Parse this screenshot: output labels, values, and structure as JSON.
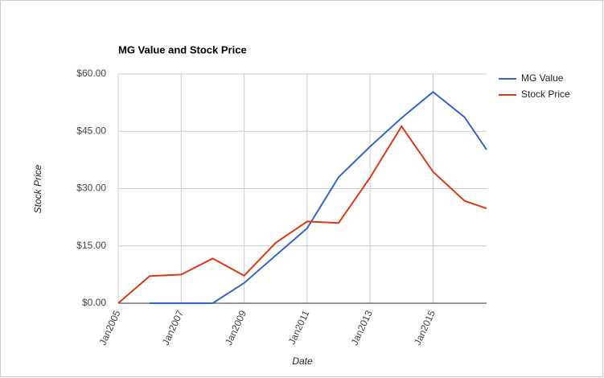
{
  "chart_data": {
    "type": "line",
    "title": "MG Value and Stock Price",
    "x_label": "Date",
    "y_label": "Stock Price",
    "x": [
      2005,
      2006,
      2007,
      2008,
      2009,
      2010,
      2011,
      2012,
      2013,
      2014,
      2015,
      2016,
      2016.7
    ],
    "series": [
      {
        "name": "MG Value",
        "color": "#3366cc",
        "values": [
          null,
          0,
          0,
          0,
          5.3,
          12.5,
          19.6,
          33,
          41,
          48.5,
          55.3,
          48.7,
          40.2
        ]
      },
      {
        "name": "Stock Price",
        "color": "#dc3912",
        "values": [
          0,
          7.1,
          7.5,
          11.7,
          7.2,
          15.8,
          21.4,
          21,
          32.9,
          46.3,
          34.4,
          26.8,
          24.8
        ]
      }
    ],
    "xlim": [
      2005,
      2016.7
    ],
    "xticks": [
      {
        "value": 2005,
        "label": "Jan2005"
      },
      {
        "value": 2007,
        "label": "Jan2007"
      },
      {
        "value": 2009,
        "label": "Jan2009"
      },
      {
        "value": 2011,
        "label": "Jan2011"
      },
      {
        "value": 2013,
        "label": "Jan2013"
      },
      {
        "value": 2015,
        "label": "Jan2015"
      }
    ],
    "ylim": [
      0,
      60
    ],
    "yticks": [
      {
        "value": 0,
        "label": "$0.00"
      },
      {
        "value": 15,
        "label": "$15.00"
      },
      {
        "value": 30,
        "label": "$30.00"
      },
      {
        "value": 45,
        "label": "$45.00"
      },
      {
        "value": 60,
        "label": "$60.00"
      }
    ],
    "grid": true,
    "legend": "right"
  }
}
